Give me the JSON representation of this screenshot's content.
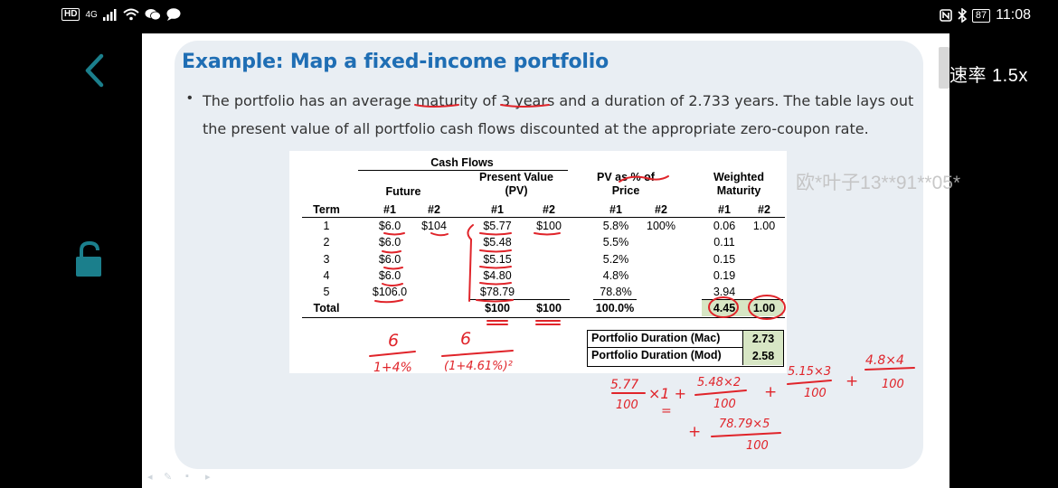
{
  "status_bar": {
    "hd": "HD",
    "network": "4G",
    "battery": "87",
    "time": "11:08"
  },
  "player": {
    "speed_label": "速率 1.5x",
    "watermark": "欧*叶子13**91**05*"
  },
  "slide": {
    "title": "Example: Map a fixed-income portfolio",
    "bullet": "The portfolio has an average maturity of 3 years and a duration of 2.733 years. The table lays out the present value of all portfolio cash flows discounted at the appropriate zero-coupon rate."
  },
  "table": {
    "group_header": "Cash Flows",
    "headers": {
      "future": "Future",
      "pv": "Present Value (PV)",
      "pv_pct": "PV as % of Price",
      "weighted": "Weighted Maturity",
      "term": "Term",
      "n1": "#1",
      "n2": "#2"
    },
    "rows": [
      {
        "term": "1",
        "f1": "$6.0",
        "f2": "$104",
        "pv1": "$5.77",
        "pv2": "$100",
        "pct1": "5.8%",
        "pct2": "100%",
        "w1": "0.06",
        "w2": "1.00"
      },
      {
        "term": "2",
        "f1": "$6.0",
        "f2": "",
        "pv1": "$5.48",
        "pv2": "",
        "pct1": "5.5%",
        "pct2": "",
        "w1": "0.11",
        "w2": ""
      },
      {
        "term": "3",
        "f1": "$6.0",
        "f2": "",
        "pv1": "$5.15",
        "pv2": "",
        "pct1": "5.2%",
        "pct2": "",
        "w1": "0.15",
        "w2": ""
      },
      {
        "term": "4",
        "f1": "$6.0",
        "f2": "",
        "pv1": "$4.80",
        "pv2": "",
        "pct1": "4.8%",
        "pct2": "",
        "w1": "0.19",
        "w2": ""
      },
      {
        "term": "5",
        "f1": "$106.0",
        "f2": "",
        "pv1": "$78.79",
        "pv2": "",
        "pct1": "78.8%",
        "pct2": "",
        "w1": "3.94",
        "w2": ""
      }
    ],
    "total": {
      "term": "Total",
      "pv1": "$100",
      "pv2": "$100",
      "pct1": "100.0%",
      "w1": "4.45",
      "w2": "1.00"
    },
    "duration_mac_label": "Portfolio Duration (Mac)",
    "duration_mac": "2.73",
    "duration_mod_label": "Portfolio Duration (Mod)",
    "duration_mod": "2.58"
  },
  "handwriting": {
    "a_num": "6",
    "a_den": "1+4%",
    "b_num": "6",
    "b_den": "(1+4.61%)²",
    "t1_num": "5.77",
    "t1_den": "100",
    "t1_mul": "×1 +",
    "t2_num": "5.48×2",
    "t2_den": "100",
    "t3_num": "5.15×3",
    "t3_den": "100",
    "t4_num": "4.8×4",
    "t4_den": "100",
    "t5_num": "78.79×5",
    "t5_den": "100",
    "plus": "+",
    "eq": "="
  },
  "colors": {
    "title_blue": "#1f6eb4",
    "ink_red": "#e0242a",
    "highlight_green": "#d7e6c4",
    "accent_teal": "#1b7f8c"
  }
}
